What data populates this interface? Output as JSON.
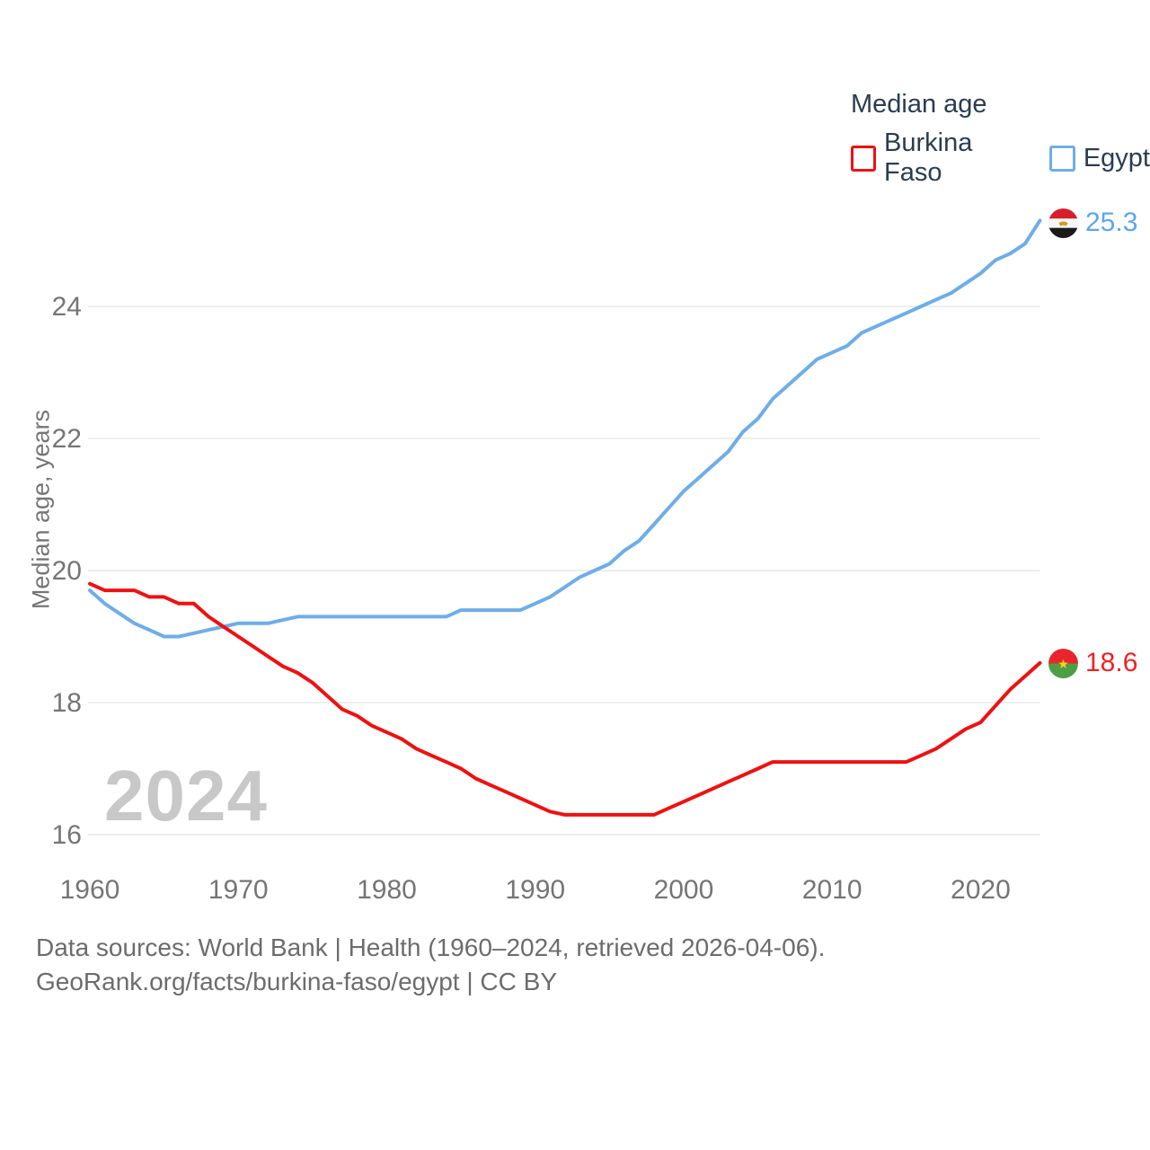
{
  "page": {
    "background": "#ffffff"
  },
  "legend": {
    "title": "Median age",
    "items": [
      {
        "label": "Burkina Faso",
        "color": "#ee1111"
      },
      {
        "label": "Egypt",
        "color": "#6fade8"
      }
    ]
  },
  "watermark": "2024",
  "footer": {
    "line1": "Data sources: World Bank | Health (1960–2024, retrieved 2026-04-06).",
    "line2": "GeoRank.org/facts/burkina-faso/egypt | CC BY"
  },
  "colors": {
    "burkina_faso_line": "#ee1111",
    "egypt_line": "#6fade8",
    "axis_text": "#757575",
    "legend_text": "#2a3c50",
    "grid_line": "#e8e8e8",
    "watermark": "#c8c8c8",
    "footer_text": "#6c6c6c"
  },
  "chart_data": {
    "type": "line",
    "title": "Median age",
    "xlabel": "",
    "ylabel": "Median age, years",
    "xlim": [
      1960,
      2024
    ],
    "ylim": [
      15.6,
      25.6
    ],
    "x_ticks": [
      1960,
      1970,
      1980,
      1990,
      2000,
      2010,
      2020
    ],
    "y_ticks": [
      16,
      18,
      20,
      22,
      24
    ],
    "grid": "horizontal",
    "legend_position": "top-right",
    "x": [
      1960,
      1961,
      1962,
      1963,
      1964,
      1965,
      1966,
      1967,
      1968,
      1969,
      1970,
      1971,
      1972,
      1973,
      1974,
      1975,
      1976,
      1977,
      1978,
      1979,
      1980,
      1981,
      1982,
      1983,
      1984,
      1985,
      1986,
      1987,
      1988,
      1989,
      1990,
      1991,
      1992,
      1993,
      1994,
      1995,
      1996,
      1997,
      1998,
      1999,
      2000,
      2001,
      2002,
      2003,
      2004,
      2005,
      2006,
      2007,
      2008,
      2009,
      2010,
      2011,
      2012,
      2013,
      2014,
      2015,
      2016,
      2017,
      2018,
      2019,
      2020,
      2021,
      2022,
      2023,
      2024
    ],
    "series": [
      {
        "name": "Burkina Faso",
        "color": "#ee1111",
        "end_label": "18.6",
        "flag": "burkina-faso",
        "values": [
          19.8,
          19.7,
          19.7,
          19.7,
          19.6,
          19.6,
          19.5,
          19.5,
          19.3,
          19.15,
          19.0,
          18.85,
          18.7,
          18.55,
          18.45,
          18.3,
          18.1,
          17.9,
          17.8,
          17.65,
          17.55,
          17.45,
          17.3,
          17.2,
          17.1,
          17.0,
          16.85,
          16.75,
          16.65,
          16.55,
          16.45,
          16.35,
          16.3,
          16.3,
          16.3,
          16.3,
          16.3,
          16.3,
          16.3,
          16.4,
          16.5,
          16.6,
          16.7,
          16.8,
          16.9,
          17.0,
          17.1,
          17.1,
          17.1,
          17.1,
          17.1,
          17.1,
          17.1,
          17.1,
          17.1,
          17.1,
          17.2,
          17.3,
          17.45,
          17.6,
          17.7,
          17.95,
          18.2,
          18.4,
          18.6
        ]
      },
      {
        "name": "Egypt",
        "color": "#6fade8",
        "end_label": "25.3",
        "flag": "egypt",
        "values": [
          19.7,
          19.5,
          19.35,
          19.2,
          19.1,
          19.0,
          19.0,
          19.05,
          19.1,
          19.15,
          19.2,
          19.2,
          19.2,
          19.25,
          19.3,
          19.3,
          19.3,
          19.3,
          19.3,
          19.3,
          19.3,
          19.3,
          19.3,
          19.3,
          19.3,
          19.4,
          19.4,
          19.4,
          19.4,
          19.4,
          19.5,
          19.6,
          19.75,
          19.9,
          20.0,
          20.1,
          20.3,
          20.45,
          20.7,
          20.95,
          21.2,
          21.4,
          21.6,
          21.8,
          22.1,
          22.3,
          22.6,
          22.8,
          23.0,
          23.2,
          23.3,
          23.4,
          23.6,
          23.7,
          23.8,
          23.9,
          24.0,
          24.1,
          24.2,
          24.35,
          24.5,
          24.7,
          24.8,
          24.95,
          25.3
        ]
      }
    ]
  }
}
